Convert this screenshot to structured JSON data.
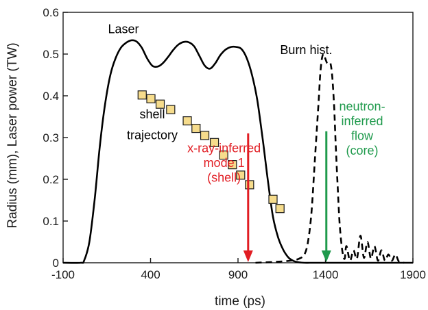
{
  "chart_data": {
    "type": "line",
    "title": "",
    "xlabel": "time (ps)",
    "ylabel": "Radius (mm), Laser power (TW)",
    "xlim": [
      -100,
      1900
    ],
    "ylim": [
      0,
      0.6
    ],
    "xticks": [
      -100,
      400,
      900,
      1400,
      1900
    ],
    "xtick_labels": [
      "-100",
      "400",
      "900",
      "1400",
      "1900"
    ],
    "yticks": [
      0,
      0.1,
      0.2,
      0.3,
      0.4,
      0.5,
      0.6
    ],
    "ytick_labels": [
      "0",
      "0.1",
      "0.2",
      "0.3",
      "0.4",
      "0.5",
      "0.6"
    ],
    "grid": false,
    "legend": "none",
    "series": [
      {
        "name": "Laser",
        "style": "solid",
        "color": "#000000",
        "x": [
          -100,
          0,
          20,
          50,
          80,
          110,
          140,
          170,
          200,
          230,
          260,
          290,
          320,
          350,
          380,
          410,
          440,
          470,
          500,
          530,
          560,
          590,
          620,
          650,
          680,
          710,
          740,
          770,
          800,
          830,
          860,
          890,
          920,
          950,
          980,
          1010,
          1040,
          1070,
          1100,
          1130,
          1160,
          1190,
          1220,
          1250,
          1280,
          1310,
          1340,
          1900
        ],
        "y": [
          0,
          0,
          0.005,
          0.05,
          0.15,
          0.28,
          0.38,
          0.45,
          0.49,
          0.515,
          0.527,
          0.533,
          0.53,
          0.515,
          0.49,
          0.472,
          0.47,
          0.478,
          0.493,
          0.51,
          0.523,
          0.529,
          0.528,
          0.518,
          0.495,
          0.472,
          0.465,
          0.478,
          0.498,
          0.511,
          0.517,
          0.517,
          0.512,
          0.49,
          0.45,
          0.39,
          0.3,
          0.2,
          0.11,
          0.06,
          0.03,
          0.012,
          0.004,
          0.001,
          0,
          0,
          0,
          0
        ]
      },
      {
        "name": "Burn hist.",
        "style": "dashed",
        "color": "#000000",
        "x": [
          1000,
          1100,
          1200,
          1250,
          1280,
          1300,
          1320,
          1340,
          1360,
          1370,
          1380,
          1390,
          1400,
          1410,
          1420,
          1430,
          1440,
          1450,
          1460,
          1470,
          1480,
          1490,
          1500,
          1510,
          1520,
          1540,
          1560,
          1580,
          1600,
          1620,
          1640,
          1660,
          1680,
          1700,
          1720,
          1740,
          1760,
          1780,
          1800,
          1820,
          1850
        ],
        "y": [
          0,
          0.002,
          0.005,
          0.01,
          0.02,
          0.05,
          0.12,
          0.25,
          0.38,
          0.45,
          0.49,
          0.5,
          0.488,
          0.478,
          0.48,
          0.475,
          0.44,
          0.37,
          0.27,
          0.18,
          0.1,
          0.05,
          0.02,
          0.01,
          0.04,
          0.005,
          0.03,
          0.01,
          0.065,
          0.012,
          0.05,
          0.01,
          0.04,
          0.005,
          0.03,
          0.005,
          0.02,
          0.005,
          0.02,
          0.003,
          0.0
        ]
      }
    ],
    "scatter": {
      "name": "shell trajectory",
      "color": "#f6dc8c",
      "edge": "#1a1a1a",
      "x": [
        352,
        402,
        455,
        515,
        610,
        660,
        710,
        765,
        818,
        868,
        915,
        966,
        1100,
        1140
      ],
      "y": [
        0.402,
        0.393,
        0.38,
        0.367,
        0.34,
        0.322,
        0.305,
        0.288,
        0.258,
        0.235,
        0.21,
        0.187,
        0.152,
        0.13
      ]
    },
    "annotations": [
      {
        "text": "Laser",
        "x": 245,
        "y": 0.55,
        "color": "#000000"
      },
      {
        "text": "Burn hist.",
        "x": 1290,
        "y": 0.5,
        "color": "#000000"
      },
      {
        "text": "shell",
        "x": 410,
        "y": 0.346,
        "color": "#000000"
      },
      {
        "text": "trajectory",
        "x": 410,
        "y": 0.296,
        "color": "#000000"
      },
      {
        "lines": [
          "x-ray-inferred",
          "mode 1",
          "(shell)"
        ],
        "x": 820,
        "y": 0.265,
        "color": "#e11d23"
      },
      {
        "lines": [
          "neutron-",
          "inferred",
          "flow",
          "(core)"
        ],
        "x": 1610,
        "y": 0.365,
        "color": "#1f9a4c"
      }
    ],
    "arrows": [
      {
        "label": "x-ray-inferred mode 1 (shell)",
        "x": 958,
        "y_start": 0.31,
        "y_end": 0.0,
        "color": "#e11d23"
      },
      {
        "label": "neutron-inferred flow (core)",
        "x": 1405,
        "y_start": 0.315,
        "y_end": 0.0,
        "color": "#1f9a4c"
      }
    ]
  }
}
